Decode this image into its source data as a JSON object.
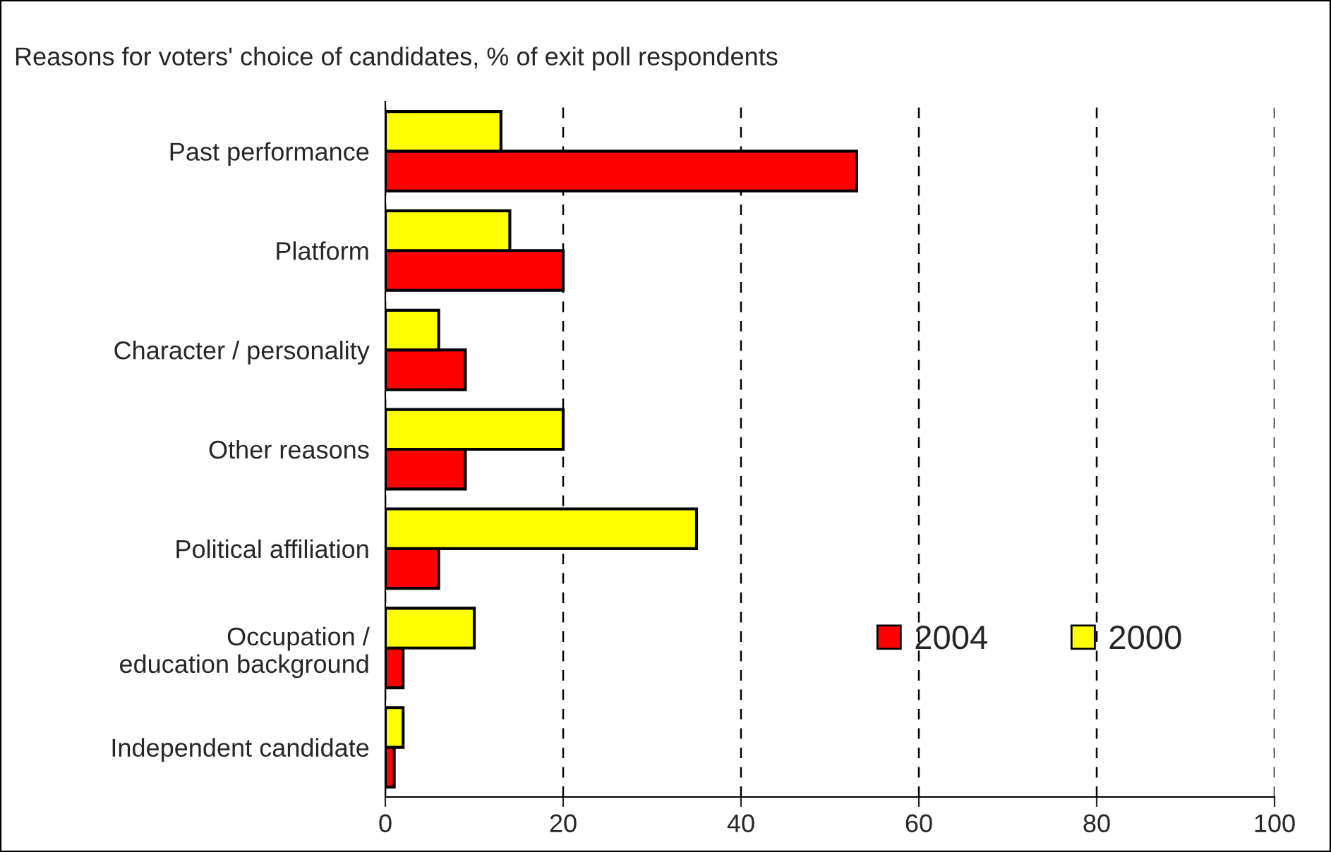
{
  "chart_data": {
    "type": "bar",
    "orientation": "horizontal",
    "title": "Reasons for voters' choice of candidates, % of exit poll respondents",
    "categories": [
      "Past performance",
      "Platform",
      "Character / personality",
      "Other reasons",
      "Political affiliation",
      "Occupation /\neducation background",
      "Independent candidate"
    ],
    "series": [
      {
        "name": "2004",
        "color": "#ff0000",
        "values": [
          53,
          20,
          9,
          9,
          6,
          2,
          1
        ]
      },
      {
        "name": "2000",
        "color": "#ffff00",
        "values": [
          13,
          14,
          6,
          20,
          35,
          10,
          2
        ]
      }
    ],
    "xlim": [
      0,
      100
    ],
    "xticks": [
      0,
      20,
      40,
      60,
      80,
      100
    ],
    "grid": "x",
    "legend": "bottom right"
  }
}
